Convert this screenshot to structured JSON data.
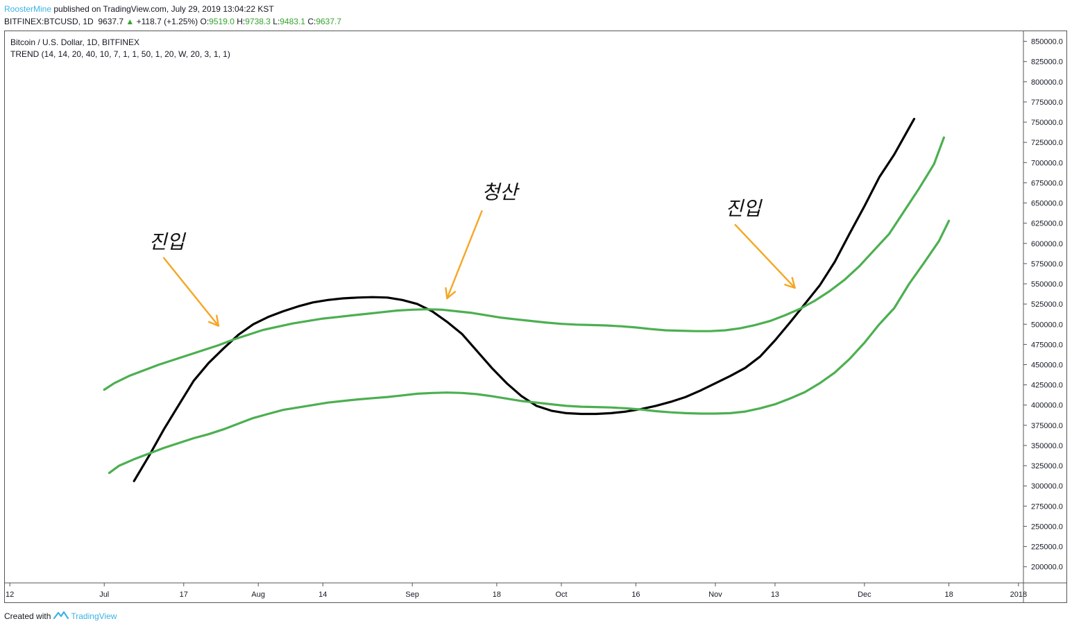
{
  "header": {
    "author": "RoosterMine",
    "published": "published on TradingView.com, July 29, 2019 13:04:22 KST",
    "symbol": "BITFINEX:BTCUSD, 1D",
    "last": "9637.7",
    "change_arrow": "▲",
    "change": "+118.7 (+1.25%)",
    "o_label": "O:",
    "o_value": "9519.0",
    "h_label": "H:",
    "h_value": "9738.3",
    "l_label": "L:",
    "l_value": "9483.1",
    "c_label": "C:",
    "c_value": "9637.7"
  },
  "legend": {
    "title": "Bitcoin / U.S. Dollar, 1D, BITFINEX",
    "indicator": "TREND (14, 14, 20, 40, 10, 7, 1, 1, 50, 1, 20, W, 20, 3, 1, 1)"
  },
  "footer": {
    "created_with": "Created with",
    "brand": "TradingView"
  },
  "colors": {
    "price_line": "#000000",
    "trend_line": "#4caf50",
    "arrow": "#f5a623",
    "axis_text": "#131722",
    "accent": "#3bb3e4"
  },
  "chart_data": {
    "type": "line",
    "x_type": "date",
    "xlim": [
      "2017-06-11",
      "2018-01-02"
    ],
    "ylim": [
      180000,
      862500
    ],
    "y_ticks": [
      850000,
      825000,
      800000,
      775000,
      750000,
      725000,
      700000,
      675000,
      650000,
      625000,
      600000,
      575000,
      550000,
      525000,
      500000,
      475000,
      450000,
      425000,
      400000,
      375000,
      350000,
      325000,
      300000,
      275000,
      250000,
      225000,
      200000
    ],
    "y_tick_labels": [
      "850000.0",
      "825000.0",
      "800000.0",
      "775000.0",
      "750000.0",
      "725000.0",
      "700000.0",
      "675000.0",
      "650000.0",
      "625000.0",
      "600000.0",
      "575000.0",
      "550000.0",
      "525000.0",
      "500000.0",
      "475000.0",
      "450000.0",
      "425000.0",
      "400000.0",
      "375000.0",
      "350000.0",
      "325000.0",
      "300000.0",
      "275000.0",
      "250000.0",
      "225000.0",
      "200000.0"
    ],
    "x_ticks": [
      {
        "date": "2017-06-12",
        "label": "12"
      },
      {
        "date": "2017-07-01",
        "label": "Jul"
      },
      {
        "date": "2017-07-17",
        "label": "17"
      },
      {
        "date": "2017-08-01",
        "label": "Aug"
      },
      {
        "date": "2017-08-14",
        "label": "14"
      },
      {
        "date": "2017-09-01",
        "label": "Sep"
      },
      {
        "date": "2017-09-18",
        "label": "18"
      },
      {
        "date": "2017-10-01",
        "label": "Oct"
      },
      {
        "date": "2017-10-16",
        "label": "16"
      },
      {
        "date": "2017-11-01",
        "label": "Nov"
      },
      {
        "date": "2017-11-13",
        "label": "13"
      },
      {
        "date": "2017-12-01",
        "label": "Dec"
      },
      {
        "date": "2017-12-18",
        "label": "18"
      },
      {
        "date": "2018-01-01",
        "label": "2018"
      }
    ],
    "series": [
      {
        "color": "#000000",
        "points": [
          [
            "2017-07-07",
            306000
          ],
          [
            "2017-07-10",
            337000
          ],
          [
            "2017-07-13",
            370000
          ],
          [
            "2017-07-16",
            400000
          ],
          [
            "2017-07-19",
            430000
          ],
          [
            "2017-07-22",
            452000
          ],
          [
            "2017-07-25",
            470000
          ],
          [
            "2017-07-28",
            487000
          ],
          [
            "2017-07-31",
            500000
          ],
          [
            "2017-08-03",
            509000
          ],
          [
            "2017-08-06",
            516000
          ],
          [
            "2017-08-09",
            522000
          ],
          [
            "2017-08-12",
            527000
          ],
          [
            "2017-08-15",
            530000
          ],
          [
            "2017-08-18",
            532000
          ],
          [
            "2017-08-21",
            533000
          ],
          [
            "2017-08-24",
            533500
          ],
          [
            "2017-08-27",
            533000
          ],
          [
            "2017-08-30",
            530000
          ],
          [
            "2017-09-02",
            525000
          ],
          [
            "2017-09-05",
            516000
          ],
          [
            "2017-09-08",
            503000
          ],
          [
            "2017-09-11",
            488000
          ],
          [
            "2017-09-14",
            467000
          ],
          [
            "2017-09-17",
            446000
          ],
          [
            "2017-09-20",
            427000
          ],
          [
            "2017-09-23",
            411000
          ],
          [
            "2017-09-26",
            399000
          ],
          [
            "2017-09-29",
            393000
          ],
          [
            "2017-10-02",
            390000
          ],
          [
            "2017-10-05",
            389000
          ],
          [
            "2017-10-08",
            389000
          ],
          [
            "2017-10-11",
            390000
          ],
          [
            "2017-10-14",
            392000
          ],
          [
            "2017-10-17",
            395000
          ],
          [
            "2017-10-20",
            399000
          ],
          [
            "2017-10-23",
            404000
          ],
          [
            "2017-10-26",
            410000
          ],
          [
            "2017-10-29",
            418000
          ],
          [
            "2017-11-01",
            427000
          ],
          [
            "2017-11-04",
            436000
          ],
          [
            "2017-11-07",
            446000
          ],
          [
            "2017-11-10",
            460000
          ],
          [
            "2017-11-13",
            480000
          ],
          [
            "2017-11-16",
            502000
          ],
          [
            "2017-11-19",
            525000
          ],
          [
            "2017-11-22",
            548000
          ],
          [
            "2017-11-25",
            577000
          ],
          [
            "2017-11-28",
            612000
          ],
          [
            "2017-12-01",
            646000
          ],
          [
            "2017-12-04",
            682000
          ],
          [
            "2017-12-07",
            710000
          ],
          [
            "2017-12-10",
            743000
          ],
          [
            "2017-12-11",
            754000
          ]
        ]
      },
      {
        "color": "#4caf50",
        "points": [
          [
            "2017-07-01",
            419000
          ],
          [
            "2017-07-03",
            427000
          ],
          [
            "2017-07-06",
            436000
          ],
          [
            "2017-07-09",
            443000
          ],
          [
            "2017-07-12",
            450000
          ],
          [
            "2017-07-15",
            456000
          ],
          [
            "2017-07-18",
            462000
          ],
          [
            "2017-07-21",
            468000
          ],
          [
            "2017-07-24",
            474000
          ],
          [
            "2017-07-27",
            481000
          ],
          [
            "2017-07-30",
            487000
          ],
          [
            "2017-08-02",
            493000
          ],
          [
            "2017-08-05",
            497000
          ],
          [
            "2017-08-08",
            501000
          ],
          [
            "2017-08-11",
            504000
          ],
          [
            "2017-08-14",
            507000
          ],
          [
            "2017-08-17",
            509000
          ],
          [
            "2017-08-20",
            511000
          ],
          [
            "2017-08-23",
            513000
          ],
          [
            "2017-08-26",
            515000
          ],
          [
            "2017-08-29",
            517000
          ],
          [
            "2017-09-01",
            518000
          ],
          [
            "2017-09-04",
            518500
          ],
          [
            "2017-09-07",
            518000
          ],
          [
            "2017-09-10",
            516000
          ],
          [
            "2017-09-13",
            514000
          ],
          [
            "2017-09-16",
            511000
          ],
          [
            "2017-09-19",
            508000
          ],
          [
            "2017-09-22",
            506000
          ],
          [
            "2017-09-25",
            504000
          ],
          [
            "2017-09-28",
            502000
          ],
          [
            "2017-10-01",
            500500
          ],
          [
            "2017-10-04",
            499500
          ],
          [
            "2017-10-07",
            499000
          ],
          [
            "2017-10-10",
            498500
          ],
          [
            "2017-10-13",
            497500
          ],
          [
            "2017-10-16",
            496000
          ],
          [
            "2017-10-19",
            494000
          ],
          [
            "2017-10-22",
            492500
          ],
          [
            "2017-10-25",
            492000
          ],
          [
            "2017-10-28",
            491500
          ],
          [
            "2017-10-31",
            491500
          ],
          [
            "2017-11-03",
            492500
          ],
          [
            "2017-11-06",
            495000
          ],
          [
            "2017-11-09",
            499000
          ],
          [
            "2017-11-12",
            504000
          ],
          [
            "2017-11-15",
            511000
          ],
          [
            "2017-11-18",
            519000
          ],
          [
            "2017-11-21",
            529000
          ],
          [
            "2017-11-24",
            541000
          ],
          [
            "2017-11-27",
            555000
          ],
          [
            "2017-11-30",
            572000
          ],
          [
            "2017-12-03",
            592000
          ],
          [
            "2017-12-06",
            612000
          ],
          [
            "2017-12-09",
            640000
          ],
          [
            "2017-12-12",
            668000
          ],
          [
            "2017-12-15",
            698000
          ],
          [
            "2017-12-17",
            731000
          ]
        ]
      },
      {
        "color": "#4caf50",
        "points": [
          [
            "2017-07-02",
            316000
          ],
          [
            "2017-07-04",
            325000
          ],
          [
            "2017-07-07",
            333000
          ],
          [
            "2017-07-10",
            340000
          ],
          [
            "2017-07-13",
            347000
          ],
          [
            "2017-07-16",
            353000
          ],
          [
            "2017-07-19",
            359000
          ],
          [
            "2017-07-22",
            364000
          ],
          [
            "2017-07-25",
            370000
          ],
          [
            "2017-07-28",
            377000
          ],
          [
            "2017-07-31",
            384000
          ],
          [
            "2017-08-03",
            389000
          ],
          [
            "2017-08-06",
            394000
          ],
          [
            "2017-08-09",
            397000
          ],
          [
            "2017-08-12",
            400000
          ],
          [
            "2017-08-15",
            403000
          ],
          [
            "2017-08-18",
            405000
          ],
          [
            "2017-08-21",
            407000
          ],
          [
            "2017-08-24",
            408500
          ],
          [
            "2017-08-27",
            410000
          ],
          [
            "2017-08-30",
            412000
          ],
          [
            "2017-09-02",
            414000
          ],
          [
            "2017-09-05",
            415000
          ],
          [
            "2017-09-08",
            415500
          ],
          [
            "2017-09-11",
            415000
          ],
          [
            "2017-09-14",
            413500
          ],
          [
            "2017-09-17",
            411000
          ],
          [
            "2017-09-20",
            408000
          ],
          [
            "2017-09-23",
            405000
          ],
          [
            "2017-09-26",
            403000
          ],
          [
            "2017-09-29",
            401000
          ],
          [
            "2017-10-02",
            399000
          ],
          [
            "2017-10-05",
            398000
          ],
          [
            "2017-10-08",
            397500
          ],
          [
            "2017-10-11",
            397000
          ],
          [
            "2017-10-14",
            396000
          ],
          [
            "2017-10-17",
            394500
          ],
          [
            "2017-10-20",
            392500
          ],
          [
            "2017-10-23",
            391000
          ],
          [
            "2017-10-26",
            390000
          ],
          [
            "2017-10-29",
            389500
          ],
          [
            "2017-11-01",
            389500
          ],
          [
            "2017-11-04",
            390000
          ],
          [
            "2017-11-07",
            392000
          ],
          [
            "2017-11-10",
            396000
          ],
          [
            "2017-11-13",
            401000
          ],
          [
            "2017-11-16",
            408000
          ],
          [
            "2017-11-19",
            416000
          ],
          [
            "2017-11-22",
            427000
          ],
          [
            "2017-11-25",
            440000
          ],
          [
            "2017-11-28",
            457000
          ],
          [
            "2017-12-01",
            477000
          ],
          [
            "2017-12-04",
            500000
          ],
          [
            "2017-12-07",
            520000
          ],
          [
            "2017-12-10",
            550000
          ],
          [
            "2017-12-13",
            576000
          ],
          [
            "2017-12-16",
            603000
          ],
          [
            "2017-12-18",
            628000
          ]
        ]
      }
    ],
    "annotations": [
      {
        "text": "진입",
        "label_at": [
          "2017-07-10",
          594000
        ],
        "arrow_from": [
          "2017-07-13",
          582000
        ],
        "arrow_to": [
          "2017-07-24",
          498000
        ]
      },
      {
        "text": "청산",
        "label_at": [
          "2017-09-15",
          655000
        ],
        "arrow_from": [
          "2017-09-15",
          640000
        ],
        "arrow_to": [
          "2017-09-08",
          532000
        ]
      },
      {
        "text": "진입",
        "label_at": [
          "2017-11-03",
          635000
        ],
        "arrow_from": [
          "2017-11-05",
          623000
        ],
        "arrow_to": [
          "2017-11-17",
          545000
        ]
      }
    ]
  }
}
